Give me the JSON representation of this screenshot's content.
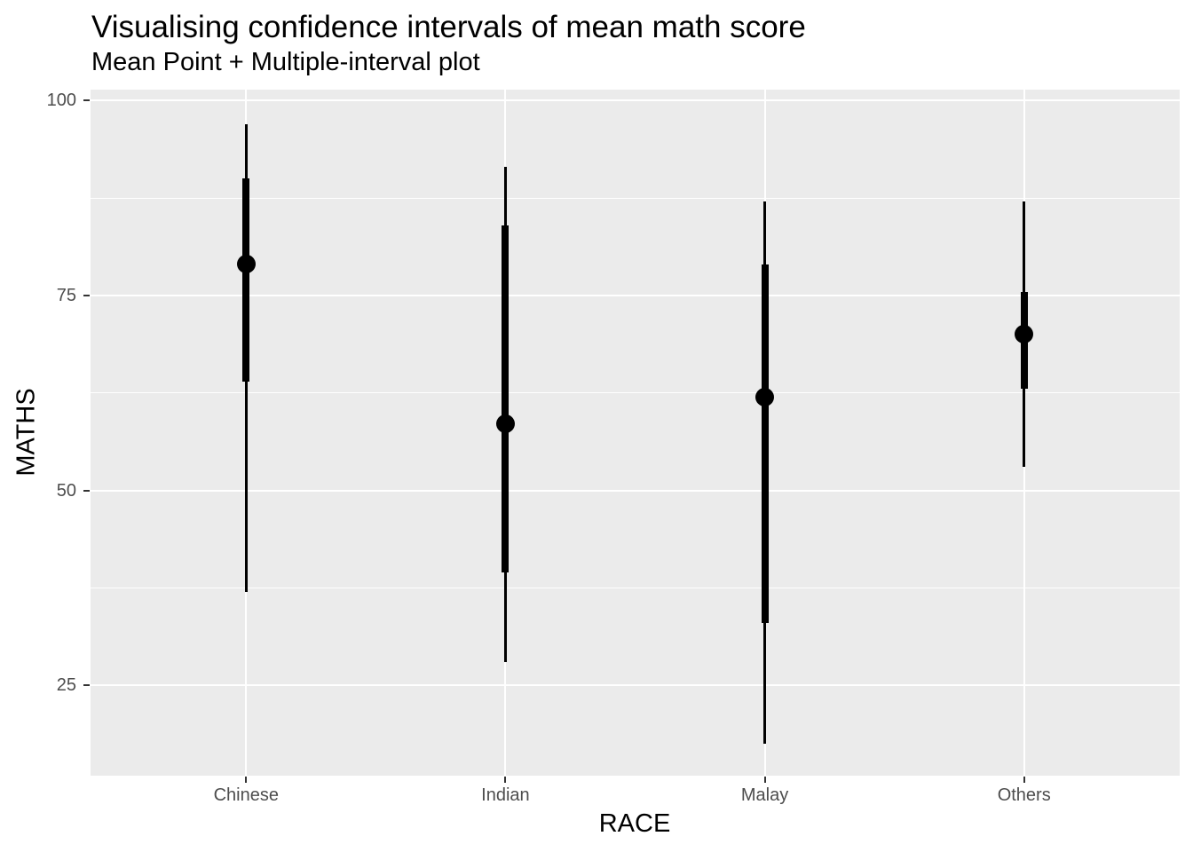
{
  "chart_data": {
    "type": "pointinterval",
    "title": "Visualising confidence intervals of mean math score",
    "subtitle": "Mean Point + Multiple-interval plot",
    "xlabel": "RACE",
    "ylabel": "MATHS",
    "categories": [
      "Chinese",
      "Indian",
      "Malay",
      "Others"
    ],
    "series": [
      {
        "category": "Chinese",
        "mean": 79,
        "thick_interval": [
          64,
          90
        ],
        "thin_interval": [
          37,
          97
        ]
      },
      {
        "category": "Indian",
        "mean": 58.5,
        "thick_interval": [
          39.5,
          84
        ],
        "thin_interval": [
          28,
          91.5
        ]
      },
      {
        "category": "Malay",
        "mean": 62,
        "thick_interval": [
          33,
          79
        ],
        "thin_interval": [
          17.5,
          87
        ]
      },
      {
        "category": "Others",
        "mean": 70,
        "thick_interval": [
          63,
          75.5
        ],
        "thin_interval": [
          53,
          87
        ]
      }
    ],
    "y_ticks": [
      100,
      75,
      50,
      25
    ],
    "y_minor_gridlines": [
      87.5,
      62.5,
      37.5
    ],
    "ylim": [
      13.4,
      101.4
    ],
    "grid": true,
    "legend": "none",
    "colors": {
      "panel_background": "#EBEBEB",
      "gridline": "#FFFFFF",
      "geom": "#000000",
      "axis_text": "#4D4D4D",
      "tick_mark": "#333333",
      "title_text": "#000000"
    }
  }
}
